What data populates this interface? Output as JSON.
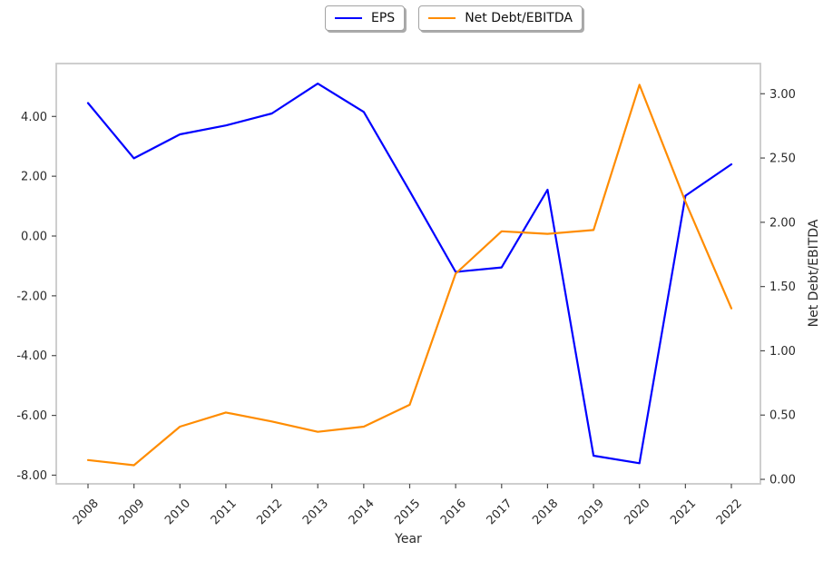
{
  "chart_data": {
    "type": "line",
    "title": "",
    "xlabel": "Year",
    "ylabel_left": "",
    "ylabel_right": "Net Debt/EBITDA",
    "categories": [
      "2008",
      "2009",
      "2010",
      "2011",
      "2012",
      "2013",
      "2014",
      "2015",
      "2016",
      "2017",
      "2018",
      "2019",
      "2020",
      "2021",
      "2022"
    ],
    "series": [
      {
        "name": "EPS",
        "axis": "left",
        "color": "#0000ff",
        "values": [
          4.45,
          2.6,
          3.4,
          3.7,
          4.1,
          5.1,
          4.15,
          1.5,
          -1.2,
          -1.05,
          1.55,
          -7.35,
          -7.6,
          1.35,
          2.4
        ]
      },
      {
        "name": "Net Debt/EBITDA",
        "axis": "right",
        "color": "#ff8c00",
        "values": [
          0.15,
          0.11,
          0.41,
          0.52,
          0.45,
          0.37,
          0.41,
          0.58,
          1.6,
          1.93,
          1.91,
          1.94,
          3.07,
          2.16,
          1.33
        ]
      }
    ],
    "left_axis": {
      "tick_labels": [
        "4.00",
        "2.00",
        "0.00",
        "-2.00",
        "-4.00",
        "-6.00",
        "-8.00"
      ],
      "tick_values": [
        4,
        2,
        0,
        -2,
        -4,
        -6,
        -8
      ],
      "range": [
        -8.29,
        5.77
      ]
    },
    "right_axis": {
      "tick_labels": [
        "3.00",
        "2.50",
        "2.00",
        "1.50",
        "1.00",
        "0.50",
        "0.00"
      ],
      "tick_values": [
        3,
        2.5,
        2,
        1.5,
        1,
        0.5,
        0
      ],
      "range": [
        -0.035,
        3.235
      ]
    },
    "legend": {
      "items": [
        "EPS",
        "Net Debt/EBITDA"
      ],
      "position": "top-center"
    },
    "grid": false,
    "x_tick_rotation": 45
  },
  "style": {
    "spine_color": "#c9c9c9",
    "tick_color": "#4d4d4d",
    "tick_label_color": "#2b2b2b",
    "background": "#ffffff"
  }
}
